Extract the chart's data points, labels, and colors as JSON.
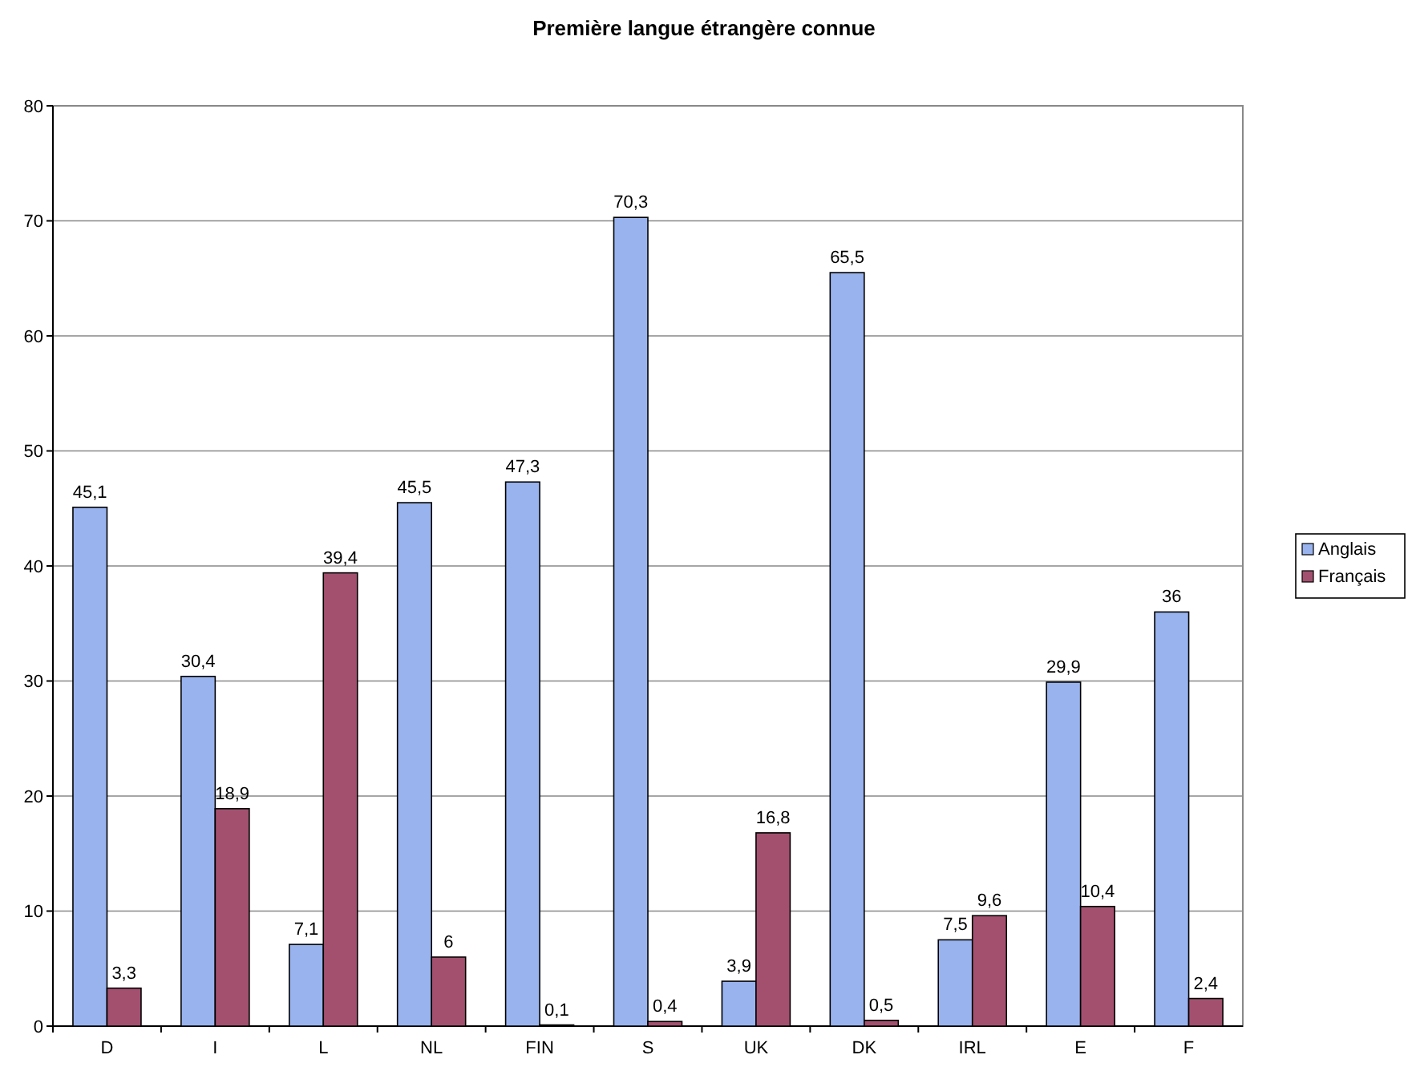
{
  "chart_data": {
    "type": "bar",
    "title": "Première langue étrangère connue",
    "categories": [
      "D",
      "I",
      "L",
      "NL",
      "FIN",
      "S",
      "UK",
      "DK",
      "IRL",
      "E",
      "F"
    ],
    "series": [
      {
        "name": "Anglais",
        "color": "#99b3ee",
        "values": [
          45.1,
          30.4,
          7.1,
          45.5,
          47.3,
          70.3,
          3.9,
          65.5,
          7.5,
          29.9,
          36
        ],
        "value_labels": [
          "45,1",
          "30,4",
          "7,1",
          "45,5",
          "47,3",
          "70,3",
          "3,9",
          "65,5",
          "7,5",
          "29,9",
          "36"
        ]
      },
      {
        "name": "Français",
        "color": "#a3506f",
        "values": [
          3.3,
          18.9,
          39.4,
          6,
          0.1,
          0.4,
          16.8,
          0.5,
          9.6,
          10.4,
          2.4
        ],
        "value_labels": [
          "3,3",
          "18,9",
          "39,4",
          "6",
          "0,1",
          "0,4",
          "16,8",
          "0,5",
          "9,6",
          "10,4",
          "2,4"
        ]
      }
    ],
    "ylim": [
      0,
      80
    ],
    "yticks": [
      0,
      10,
      20,
      30,
      40,
      50,
      60,
      70,
      80
    ],
    "grid": "y",
    "legend": "right"
  }
}
